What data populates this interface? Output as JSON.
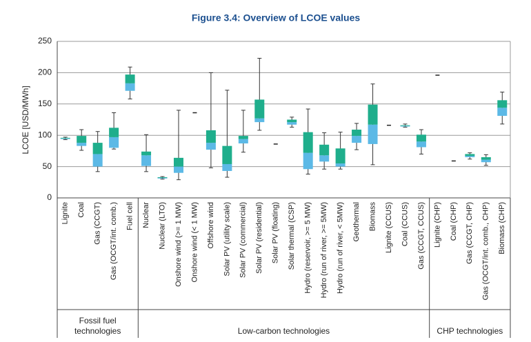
{
  "chart_data": {
    "type": "box",
    "title": "Figure 3.4: Overview of LCOE values",
    "y_label": "LCOE [USD/MWh]",
    "categories": [
      "Lignite",
      "Coal",
      "Gas (CCGT)",
      "Gas (OCGT/int. comb.)",
      "Fuel cell",
      "Nuclear",
      "Nuclear (LTO)",
      "Onshore wind (>= 1 MW)",
      "Onshore wind (< 1 MW)",
      "Offshore wind",
      "Solar PV (utility scale)",
      "Solar PV (commercial)",
      "Solar PV (residential)",
      "Solar PV (floating)",
      "Solar thermal (CSP)",
      "Hydro (reservoir, >= 5 MW)",
      "Hydro (run of river, >= 5MW)",
      "Hydro (run of river, < 5MW)",
      "Geothermal",
      "Biomass",
      "Lignite (CCUS)",
      "Coal (CCUS)",
      "Gas (CCGT, CCUS)",
      "Lignite (CHP)",
      "Coal (CHP)",
      "Gas (CCGT, CHP)",
      "Gas (OCGT/int. comb., CHP)",
      "Biomass (CHP)"
    ],
    "min": [
      93,
      76,
      42,
      78,
      158,
      42,
      30,
      29,
      null,
      48,
      33,
      73,
      108,
      null,
      113,
      38,
      46,
      46,
      77,
      53,
      null,
      113,
      70,
      null,
      null,
      62,
      52,
      118
    ],
    "q1": [
      94,
      83,
      50,
      80,
      171,
      51,
      31,
      40,
      null,
      77,
      43,
      87,
      121,
      null,
      117,
      46,
      58,
      50,
      88,
      86,
      null,
      114,
      81,
      null,
      null,
      65,
      57,
      131
    ],
    "median": [
      95,
      88,
      70,
      97,
      183,
      68,
      32,
      50,
      136,
      88,
      54,
      94,
      127,
      86,
      121,
      72,
      68,
      55,
      99,
      117,
      116,
      115,
      90,
      196,
      59,
      67,
      61,
      144
    ],
    "q3": [
      96,
      99,
      88,
      112,
      197,
      74,
      33,
      64,
      null,
      108,
      83,
      99,
      157,
      null,
      125,
      105,
      85,
      79,
      109,
      149,
      null,
      116,
      101,
      null,
      null,
      70,
      65,
      156
    ],
    "max": [
      97,
      109,
      106,
      136,
      209,
      101,
      34,
      140,
      null,
      200,
      172,
      140,
      223,
      null,
      129,
      142,
      104,
      105,
      119,
      182,
      null,
      118,
      109,
      null,
      null,
      72,
      69,
      169
    ],
    "groups": [
      {
        "name": "Fossil fuel technologies",
        "start": 0,
        "end": 4
      },
      {
        "name": "Low-carbon technologies",
        "start": 5,
        "end": 22
      },
      {
        "name": "CHP technologies",
        "start": 23,
        "end": 27
      }
    ],
    "lower_color": "#5cb9e6",
    "upper_color": "#1fae8c",
    "ylim": [
      0,
      250
    ],
    "yticks": [
      0,
      50,
      100,
      150,
      200,
      250
    ],
    "grid": true
  }
}
